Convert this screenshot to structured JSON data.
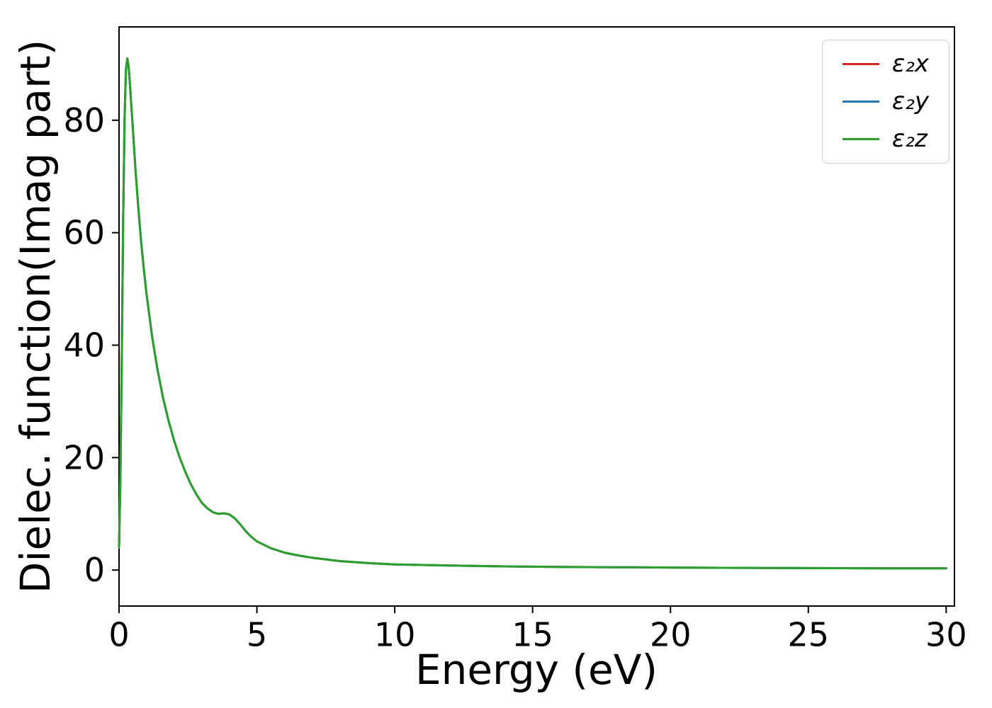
{
  "figure": {
    "background": "#ffffff",
    "text_color": "#000000"
  },
  "chart_data": {
    "type": "line",
    "title": "",
    "xlabel": "Energy (eV)",
    "ylabel": "Dielec. function(Imag part)",
    "xlim": [
      0,
      30.3
    ],
    "ylim": [
      -6.4,
      96.6
    ],
    "xticks": [
      0,
      5,
      10,
      15,
      20,
      25,
      30
    ],
    "yticks": [
      0,
      20,
      40,
      60,
      80
    ],
    "grid": false,
    "legend_position": "upper right",
    "x": [
      0,
      0.05,
      0.1,
      0.15,
      0.2,
      0.25,
      0.3,
      0.35,
      0.4,
      0.5,
      0.6,
      0.7,
      0.8,
      0.9,
      1.0,
      1.2,
      1.4,
      1.6,
      1.8,
      2.0,
      2.2,
      2.4,
      2.6,
      2.8,
      3.0,
      3.2,
      3.4,
      3.6,
      3.8,
      4.0,
      4.2,
      4.4,
      4.6,
      4.8,
      5.0,
      5.5,
      6.0,
      6.5,
      7.0,
      7.5,
      8.0,
      9.0,
      10.0,
      11.0,
      12.0,
      14.0,
      16.0,
      18.0,
      20.0,
      22.0,
      25.0,
      28.0,
      30.0
    ],
    "series": [
      {
        "id": "eps2x",
        "label": "ε₂x",
        "color": "#d62728",
        "values": [
          4.0,
          16.0,
          38.0,
          62.0,
          80.0,
          89.0,
          91.0,
          89.5,
          86.0,
          78.5,
          71.0,
          64.5,
          58.5,
          53.5,
          49.0,
          41.5,
          35.5,
          30.5,
          26.5,
          23.0,
          20.0,
          17.5,
          15.3,
          13.5,
          12.0,
          11.0,
          10.3,
          10.0,
          10.1,
          9.9,
          9.2,
          8.1,
          6.9,
          5.9,
          5.1,
          3.9,
          3.1,
          2.6,
          2.2,
          1.9,
          1.6,
          1.25,
          1.0,
          0.9,
          0.8,
          0.65,
          0.55,
          0.5,
          0.45,
          0.4,
          0.35,
          0.3,
          0.3
        ]
      },
      {
        "id": "eps2y",
        "label": "ε₂y",
        "color": "#1f77b4",
        "values": [
          4.0,
          16.0,
          38.0,
          62.0,
          80.0,
          89.0,
          91.0,
          89.5,
          86.0,
          78.5,
          71.0,
          64.5,
          58.5,
          53.5,
          49.0,
          41.5,
          35.5,
          30.5,
          26.5,
          23.0,
          20.0,
          17.5,
          15.3,
          13.5,
          12.0,
          11.0,
          10.3,
          10.0,
          10.1,
          9.9,
          9.2,
          8.1,
          6.9,
          5.9,
          5.1,
          3.9,
          3.1,
          2.6,
          2.2,
          1.9,
          1.6,
          1.25,
          1.0,
          0.9,
          0.8,
          0.65,
          0.55,
          0.5,
          0.45,
          0.4,
          0.35,
          0.3,
          0.3
        ]
      },
      {
        "id": "eps2z",
        "label": "ε₂z",
        "color": "#2ca02c",
        "values": [
          4.0,
          16.0,
          38.0,
          62.0,
          80.0,
          89.0,
          91.0,
          89.5,
          86.0,
          78.5,
          71.0,
          64.5,
          58.5,
          53.5,
          49.0,
          41.5,
          35.5,
          30.5,
          26.5,
          23.0,
          20.0,
          17.5,
          15.3,
          13.5,
          12.0,
          11.0,
          10.3,
          10.0,
          10.1,
          9.9,
          9.2,
          8.1,
          6.9,
          5.9,
          5.1,
          3.9,
          3.1,
          2.6,
          2.2,
          1.9,
          1.6,
          1.25,
          1.0,
          0.9,
          0.8,
          0.65,
          0.55,
          0.5,
          0.45,
          0.4,
          0.35,
          0.3,
          0.3
        ]
      }
    ]
  }
}
